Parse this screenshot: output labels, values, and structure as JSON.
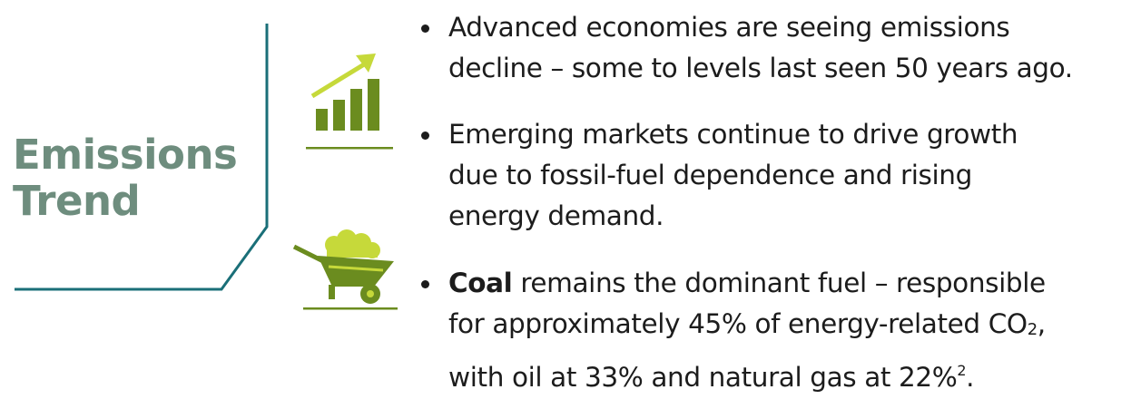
{
  "colors": {
    "title": "#6e8d7e",
    "bracket": "#1a6f78",
    "icon_dark": "#6b8c1f",
    "icon_light": "#c6d93a",
    "bullet_dot": "#1c1c1c"
  },
  "title": {
    "line1": "Emissions",
    "line2": "Trend"
  },
  "icons": {
    "chart": "growth-chart-icon",
    "wheelbarrow": "coal-wheelbarrow-icon"
  },
  "bullets": [
    {
      "line1": "Advanced economies are seeing emissions",
      "line2": "decline – some to levels last seen 50 years ago."
    },
    {
      "line1": "Emerging markets continue to drive growth",
      "line2": "due to fossil-fuel dependence and rising",
      "line3": "energy demand."
    },
    {
      "bold": "Coal",
      "line1_rest": " remains the dominant fuel – responsible",
      "line2_pre": "for approximately 45% of energy-related CO",
      "line2_sub": "2",
      "line2_post": ",",
      "line3_pre": "with oil at 33% and natural gas at 22%",
      "line3_sup": "2",
      "line3_post": "."
    }
  ]
}
